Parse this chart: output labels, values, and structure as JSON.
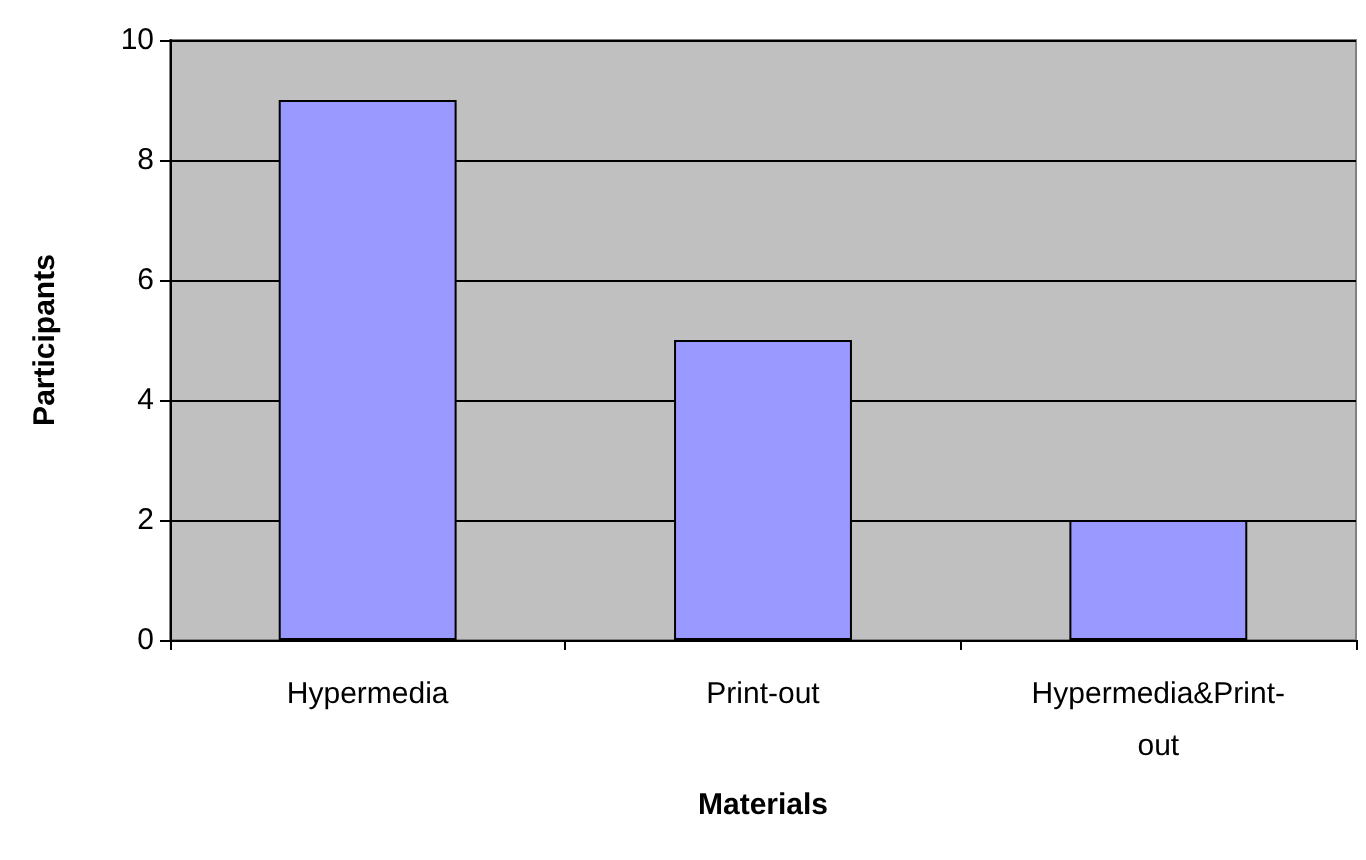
{
  "chart_data": {
    "type": "bar",
    "xlabel": "Materials",
    "ylabel": "Participants",
    "categories": [
      "Hypermedia",
      "Print-out",
      "Hypermedia&Print-out"
    ],
    "values": [
      9,
      5,
      2
    ],
    "color": "#9999ff",
    "ylim": [
      0,
      10
    ],
    "yticks": [
      0,
      2,
      4,
      6,
      8,
      10
    ],
    "grid": "y"
  }
}
